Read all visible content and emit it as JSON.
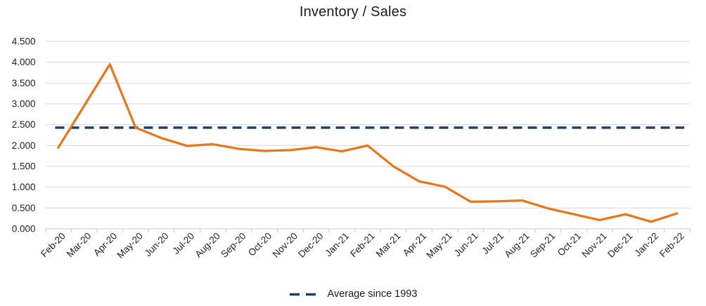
{
  "title": "Inventory / Sales",
  "legend": {
    "average_label": "Average since 1993"
  },
  "colors": {
    "series": "#E5771E",
    "average": "#1F4068",
    "gridline": "#DADADA",
    "axis": "#C9C9C9",
    "text": "#1F1F1F"
  },
  "chart_data": {
    "type": "line",
    "title": "Inventory / Sales",
    "categories": [
      "Feb-20",
      "Mar-20",
      "Apr-20",
      "May-20",
      "Jun-20",
      "Jul-20",
      "Aug-20",
      "Sep-20",
      "Oct-20",
      "Nov-20",
      "Dec-20",
      "Jan-21",
      "Feb-21",
      "Mar-21",
      "Apr-21",
      "May-21",
      "Jun-21",
      "Jul-21",
      "Aug-21",
      "Sep-21",
      "Oct-21",
      "Nov-21",
      "Dec-21",
      "Jan-22",
      "Feb-22"
    ],
    "series": [
      {
        "name": "Inventory / Sales",
        "style": "solid",
        "values": [
          1.95,
          2.95,
          3.95,
          2.43,
          2.18,
          1.99,
          2.03,
          1.92,
          1.87,
          1.89,
          1.96,
          1.86,
          2.0,
          1.5,
          1.14,
          1.01,
          0.65,
          0.66,
          0.68,
          0.49,
          0.35,
          0.21,
          0.35,
          0.17,
          0.37
        ]
      },
      {
        "name": "Average since 1993",
        "style": "dashed",
        "constant_value": 2.43
      }
    ],
    "ylim": [
      0,
      4.5
    ],
    "ytick_step": 0.5,
    "y_tick_labels": [
      "0.000",
      "0.500",
      "1.000",
      "1.500",
      "2.000",
      "2.500",
      "3.000",
      "3.500",
      "4.000",
      "4.500"
    ],
    "grid": true,
    "legend_position": "bottom"
  }
}
